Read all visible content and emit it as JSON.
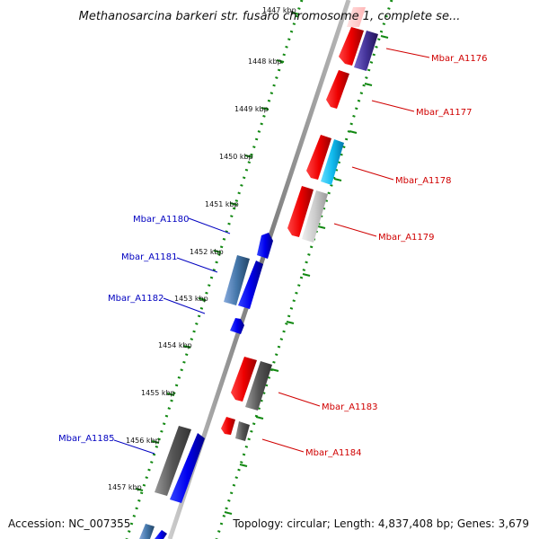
{
  "title": "Methanosarcina barkeri str. fusaro chromosome 1, complete se...",
  "footer": {
    "accession": "Accession: NC_007355",
    "topology": "Topology: circular; Length: 4,837,408 bp; Genes: 3,679"
  },
  "ticks": [
    "1447 kbp",
    "1448 kbp",
    "1449 kbp",
    "1450 kbp",
    "1451 kbp",
    "1452 kbp",
    "1453 kbp",
    "1454 kbp",
    "1455 kbp",
    "1456 kbp",
    "1457 kbp"
  ],
  "genes_forward": [
    {
      "label": "Mbar_A1176"
    },
    {
      "label": "Mbar_A1177"
    },
    {
      "label": "Mbar_A1178"
    },
    {
      "label": "Mbar_A1179"
    },
    {
      "label": "Mbar_A1183"
    },
    {
      "label": "Mbar_A1184"
    }
  ],
  "genes_reverse": [
    {
      "label": "Mbar_A1180"
    },
    {
      "label": "Mbar_A1181"
    },
    {
      "label": "Mbar_A1182"
    },
    {
      "label": "Mbar_A1185"
    }
  ],
  "colors": {
    "forward_label": "#d00000",
    "reverse_label": "#0000c0",
    "red_gene": "#ee0000",
    "blue_gene": "#0000ee",
    "tick_dots": "#118811"
  }
}
